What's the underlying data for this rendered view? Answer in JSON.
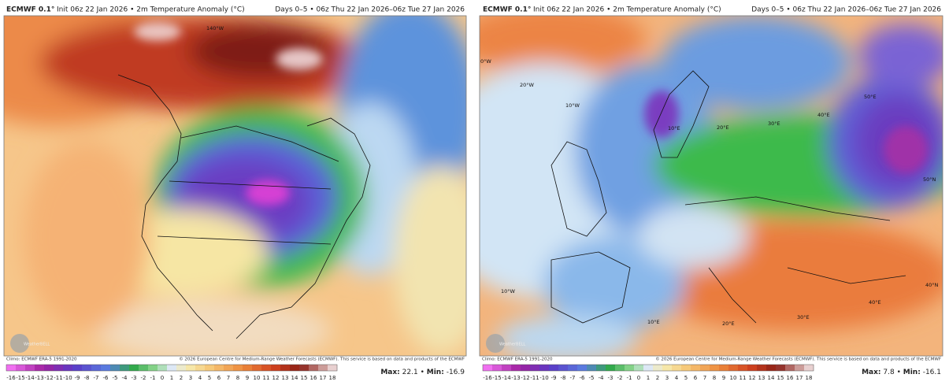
{
  "panels": [
    {
      "model": "ECMWF 0.1°",
      "subtitle": "Init 06z 22 Jan 2026 • 2m Temperature Anomaly (°C)",
      "period": "Days 0–5 • 06z Thu 22 Jan 2026–06z Tue 27 Jan 2026",
      "climo": "Climo: ECMWF ERA-5 1991-2020",
      "copyright": "© 2026 European Centre for Medium-Range Weather Forecasts (ECMWF). This service is based on data and products of the ECMWF",
      "logo": "WeatherBELL",
      "max_label": "Max:",
      "max": 22.1,
      "min_label": "Min:",
      "min": -16.9,
      "separator": "•",
      "map_labels": [
        "140°W"
      ],
      "colorbar_ticks": [
        -16,
        -15,
        -14,
        -13,
        -12,
        -11,
        -10,
        -9,
        -8,
        -7,
        -6,
        -5,
        -4,
        -3,
        -2,
        -1,
        0,
        1,
        2,
        3,
        4,
        5,
        6,
        7,
        8,
        9,
        10,
        11,
        12,
        13,
        14,
        15,
        16,
        17,
        18
      ]
    },
    {
      "model": "ECMWF 0.1°",
      "subtitle": "Init 06z 22 Jan 2026 • 2m Temperature Anomaly (°C)",
      "period": "Days 0–5 • 06z Thu 22 Jan 2026–06z Tue 27 Jan 2026",
      "climo": "Climo: ECMWF ERA-5 1991-2020",
      "copyright": "© 2026 European Centre for Medium-Range Weather Forecasts (ECMWF). This service is based on data and products of the ECMWF",
      "logo": "WeatherBELL",
      "max_label": "Max:",
      "max": 7.8,
      "min_label": "Min:",
      "min": -16.1,
      "separator": "•",
      "map_labels": [
        "0°W",
        "20°W",
        "10°W",
        "10°E",
        "20°E",
        "30°E",
        "40°E",
        "50°E",
        "50°N",
        "40°N",
        "10°W",
        "10°E",
        "20°E",
        "30°E",
        "40°E"
      ],
      "colorbar_ticks": [
        -16,
        -15,
        -14,
        -13,
        -12,
        -11,
        -10,
        -9,
        -8,
        -7,
        -6,
        -5,
        -4,
        -3,
        -2,
        -1,
        0,
        1,
        2,
        3,
        4,
        5,
        6,
        7,
        8,
        9,
        10,
        11,
        12,
        13,
        14,
        15,
        16,
        17,
        18
      ]
    }
  ]
}
